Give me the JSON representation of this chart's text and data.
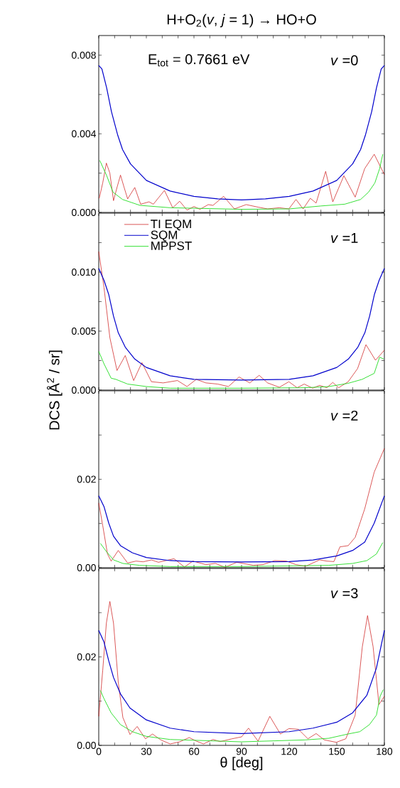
{
  "chart_data": [
    {
      "type": "line",
      "title": "H+O$_{2}$(*v*, *j* = 1) → HO+O",
      "annotations": [
        "E$_{tot}$ = 0.7661 eV",
        "*v* =0"
      ],
      "xlim": [
        0,
        180
      ],
      "ylim": [
        0,
        0.009
      ],
      "tick_labels": "y",
      "xticks": [
        0,
        10,
        20,
        30,
        40,
        50,
        60,
        70,
        80,
        90,
        100,
        110,
        120,
        130,
        140,
        150,
        160,
        170,
        180
      ],
      "yticks": [
        {
          "value": 0,
          "label": "0.000"
        },
        {
          "value": 0.002,
          "label": null
        },
        {
          "value": 0.004,
          "label": "0.004"
        },
        {
          "value": 0.006,
          "label": null
        },
        {
          "value": 0.008,
          "label": "0.008"
        }
      ],
      "series": [
        {
          "color": "#cc1111",
          "x": [
            0.3,
            2.5,
            4.8,
            7,
            9.3,
            11.5,
            13.7,
            16,
            18.2,
            22.7,
            26.4,
            31.7,
            34.4,
            41.4,
            46.6,
            51,
            55.6,
            60,
            63.8,
            69,
            72,
            78.7,
            85.5,
            92.9,
            100.4,
            106.4,
            113.8,
            119.8,
            124.3,
            128.8,
            133.3,
            137,
            143,
            147.5,
            154.5,
            161.6,
            167.6,
            173.6,
            180
          ],
          "values": [
            0.00072,
            0.0015,
            0.00251,
            0.002,
            0.0006,
            0.00127,
            0.0019,
            0.00127,
            0.00069,
            0.00127,
            0.00042,
            0.00054,
            0.00042,
            0.00112,
            0.00024,
            0.00057,
            0.00012,
            0.0003,
            0.00016,
            0.0004,
            0.00036,
            0.00082,
            0.00018,
            0.0004,
            0.00027,
            0.00018,
            0.00024,
            0.00018,
            0.00066,
            0.00018,
            0.00072,
            0.00048,
            0.00209,
            0.00054,
            0.00187,
            0.00078,
            0.00223,
            0.00296,
            0.00193
          ]
        },
        {
          "color": "#0000cc",
          "x": [
            0,
            2,
            5,
            8,
            12,
            15,
            20,
            30,
            45,
            60,
            75,
            90,
            105,
            120,
            135,
            150,
            160,
            165,
            168,
            172,
            175,
            178,
            180
          ],
          "values": [
            0.00748,
            0.0073,
            0.00633,
            0.00513,
            0.00392,
            0.0032,
            0.00247,
            0.00163,
            0.00109,
            0.00082,
            0.00069,
            0.00064,
            0.00069,
            0.00082,
            0.00109,
            0.00163,
            0.00247,
            0.0032,
            0.00392,
            0.00513,
            0.00633,
            0.0073,
            0.00748
          ]
        },
        {
          "color": "#22dd22",
          "x": [
            0.6,
            5,
            9,
            15,
            26,
            45,
            90,
            120,
            140,
            155,
            165,
            170,
            174,
            177,
            179
          ],
          "values": [
            0.00265,
            0.00187,
            0.00103,
            0.00066,
            0.00036,
            0.00024,
            0.00016,
            0.00018,
            0.00033,
            0.00042,
            0.00066,
            0.00103,
            0.0015,
            0.00223,
            0.00296
          ]
        }
      ]
    },
    {
      "type": "line",
      "ylabel": "DCS [Å$^{2}$ / sr]",
      "annotations": [
        "*v* =1"
      ],
      "legend": "top left",
      "xlim": [
        0,
        180
      ],
      "ylim": [
        0,
        0.015
      ],
      "tick_labels": "y",
      "xticks": [
        0,
        10,
        20,
        30,
        40,
        50,
        60,
        70,
        80,
        90,
        100,
        110,
        120,
        130,
        140,
        150,
        160,
        170,
        180
      ],
      "yticks": [
        {
          "value": 0,
          "label": "0.000"
        },
        {
          "value": 0.0025,
          "label": null
        },
        {
          "value": 0.005,
          "label": "0.005"
        },
        {
          "value": 0.0075,
          "label": null
        },
        {
          "value": 0.01,
          "label": "0.010"
        },
        {
          "value": 0.0125,
          "label": null
        }
      ],
      "series": [
        {
          "name": "TI EQM",
          "color": "#cc1111",
          "x": [
            0,
            3.3,
            7,
            11.5,
            16.7,
            22,
            27.2,
            33.2,
            40.6,
            49.6,
            55.6,
            61.5,
            67.5,
            75,
            81.7,
            88.4,
            95.2,
            101.1,
            106.4,
            113.8,
            119.8,
            125,
            129.5,
            134.8,
            139.2,
            143.7,
            147.5,
            151.2,
            157.2,
            163.1,
            168.4,
            174.4,
            180
          ],
          "values": [
            0.01174,
            0.0087,
            0.00445,
            0.00166,
            0.00293,
            0.00081,
            0.00233,
            0.00071,
            0.00061,
            0.00081,
            0.0003,
            0.00091,
            0.00061,
            0.00051,
            0.0003,
            0.00111,
            0.00061,
            0.00125,
            0.00061,
            0.00024,
            0.00071,
            0.0002,
            0.00051,
            0.00016,
            0.0004,
            0.0002,
            0.00065,
            0.0002,
            0.00071,
            0.00182,
            0.00385,
            0.00253,
            0.00338
          ]
        },
        {
          "name": "SQM",
          "color": "#0000cc",
          "x": [
            0,
            3.3,
            6.3,
            9.3,
            12.3,
            16.7,
            22.7,
            30,
            45,
            60,
            90,
            120,
            135,
            150,
            157.3,
            163.3,
            167.7,
            170.7,
            173.7,
            176.7,
            180
          ],
          "values": [
            0.01032,
            0.00931,
            0.0081,
            0.00627,
            0.00486,
            0.00364,
            0.00263,
            0.00192,
            0.00121,
            0.00091,
            0.00085,
            0.00091,
            0.00121,
            0.00192,
            0.00263,
            0.00364,
            0.00486,
            0.00627,
            0.0081,
            0.00931,
            0.01032
          ]
        },
        {
          "name": "MPPST",
          "color": "#22dd22",
          "x": [
            0,
            3.3,
            7.8,
            10.8,
            18.2,
            30,
            45,
            90,
            130,
            145,
            157,
            166,
            173.6,
            177,
            179.6
          ],
          "values": [
            0.00328,
            0.00223,
            0.00101,
            0.00091,
            0.00051,
            0.0003,
            0.00016,
            0.00016,
            0.0002,
            0.0003,
            0.00057,
            0.00091,
            0.00142,
            0.00279,
            0.00263
          ]
        }
      ]
    },
    {
      "type": "line",
      "annotations": [
        "*v* =2"
      ],
      "xlim": [
        0,
        180
      ],
      "ylim": [
        0,
        0.04
      ],
      "tick_labels": "y",
      "xticks": [
        0,
        10,
        20,
        30,
        40,
        50,
        60,
        70,
        80,
        90,
        100,
        110,
        120,
        130,
        140,
        150,
        160,
        170,
        180
      ],
      "yticks": [
        {
          "value": 0,
          "label": "0.00"
        },
        {
          "value": 0.01,
          "label": null
        },
        {
          "value": 0.02,
          "label": "0.02"
        },
        {
          "value": 0.03,
          "label": null
        }
      ],
      "series": [
        {
          "color": "#cc1111",
          "x": [
            0,
            2.5,
            5.5,
            7.8,
            12.3,
            18.2,
            23.5,
            28,
            33.2,
            37.6,
            47.4,
            54,
            59.3,
            67.5,
            73.5,
            79.5,
            87,
            97.4,
            103.4,
            110.9,
            118.3,
            124.3,
            130.3,
            139.2,
            143.7,
            148.2,
            152,
            157.2,
            161.6,
            167.6,
            173.6,
            180
          ],
          "values": [
            0.01464,
            0.00954,
            0.00311,
            0.0015,
            0.00391,
            0.00107,
            0.0015,
            0.00134,
            0.00177,
            0.00123,
            0.00204,
            0.00016,
            0.0015,
            0.0007,
            0.00097,
            0.0001,
            0.00123,
            0.00054,
            0.0007,
            0.00161,
            0.0015,
            0.0007,
            0.00032,
            0.00177,
            0.0015,
            0.00139,
            0.00472,
            0.00499,
            0.00686,
            0.0133,
            0.02161,
            0.02697
          ]
        },
        {
          "color": "#0000cc",
          "x": [
            0,
            3.3,
            6.3,
            9.3,
            13.7,
            21.2,
            30,
            45,
            60,
            90,
            120,
            135,
            150,
            160,
            167.6,
            173.6,
            180
          ],
          "values": [
            0.01625,
            0.01383,
            0.01008,
            0.00713,
            0.00499,
            0.00338,
            0.00231,
            0.00161,
            0.00139,
            0.00129,
            0.00139,
            0.00175,
            0.00268,
            0.00391,
            0.00579,
            0.01008,
            0.01625
          ]
        },
        {
          "color": "#22dd22",
          "x": [
            1,
            4.8,
            9.3,
            15.2,
            25.7,
            45,
            90,
            145,
            160,
            169,
            175,
            179
          ],
          "values": [
            0.00552,
            0.00365,
            0.00177,
            0.00097,
            0.00054,
            0.00027,
            0.00027,
            0.00054,
            0.00097,
            0.00161,
            0.00311,
            0.00568
          ]
        }
      ]
    },
    {
      "type": "line",
      "xlabel": "θ [deg]",
      "annotations": [
        "*v* =3"
      ],
      "xlim": [
        0,
        180
      ],
      "ylim": [
        0,
        0.04
      ],
      "xticks": [
        0,
        {
          "value": 10,
          "label": null
        },
        {
          "value": 20,
          "label": null
        },
        30,
        {
          "value": 40,
          "label": null
        },
        {
          "value": 50,
          "label": null
        },
        60,
        {
          "value": 70,
          "label": null
        },
        {
          "value": 80,
          "label": null
        },
        90,
        {
          "value": 100,
          "label": null
        },
        {
          "value": 110,
          "label": null
        },
        120,
        {
          "value": 130,
          "label": null
        },
        {
          "value": 140,
          "label": null
        },
        150,
        {
          "value": 160,
          "label": null
        },
        {
          "value": 170,
          "label": null
        },
        180
      ],
      "yticks": [
        {
          "value": 0,
          "label": "0.00"
        },
        {
          "value": 0.01,
          "label": null
        },
        {
          "value": 0.02,
          "label": "0.02"
        },
        {
          "value": 0.03,
          "label": null
        }
      ],
      "series": [
        {
          "color": "#cc1111",
          "x": [
            0,
            2.5,
            4.8,
            7,
            9.3,
            12.3,
            15.2,
            19.7,
            24.2,
            29.4,
            33.9,
            39.1,
            45,
            51,
            57,
            61.5,
            66,
            72,
            76.5,
            84,
            90,
            94.4,
            100.4,
            107.8,
            114.5,
            119.8,
            125.8,
            131.8,
            137,
            142.2,
            149.7,
            155.7,
            161.6,
            166.1,
            169.4,
            172.9,
            176.6,
            180
          ],
          "values": [
            0.00656,
            0.01696,
            0.02763,
            0.03253,
            0.02763,
            0.01429,
            0.00629,
            0.00245,
            0.00427,
            0.00149,
            0.00256,
            0.00123,
            0.00032,
            0.0008,
            0.00176,
            0.00096,
            0.00032,
            0.00133,
            0.00085,
            0.00149,
            0.00192,
            0.00389,
            0.00096,
            0.00656,
            0.00256,
            0.00379,
            0.00363,
            0.00149,
            0.00267,
            0.00123,
            0.00069,
            0.00149,
            0.00683,
            0.02229,
            0.02933,
            0.02229,
            0.00923,
            0.01109
          ]
        },
        {
          "color": "#0000cc",
          "x": [
            0,
            3.3,
            6.3,
            9.3,
            13.7,
            19.7,
            30,
            45,
            60,
            90,
            120,
            135,
            150,
            160,
            169,
            175,
            180
          ],
          "values": [
            0.026,
            0.02336,
            0.01909,
            0.01536,
            0.01163,
            0.00843,
            0.00576,
            0.00389,
            0.00309,
            0.00267,
            0.00309,
            0.00389,
            0.00523,
            0.00736,
            0.01136,
            0.01749,
            0.026
          ]
        },
        {
          "color": "#22dd22",
          "x": [
            1,
            3.3,
            7.8,
            13.7,
            21.2,
            30,
            45,
            90,
            130,
            145,
            157,
            164.5,
            170.6,
            175,
            177.3,
            179.3
          ],
          "values": [
            0.01243,
            0.01056,
            0.00736,
            0.00469,
            0.00309,
            0.00203,
            0.00133,
            0.0008,
            0.00123,
            0.0016,
            0.00256,
            0.00309,
            0.00469,
            0.00683,
            0.01109,
            0.01259
          ]
        }
      ]
    }
  ]
}
